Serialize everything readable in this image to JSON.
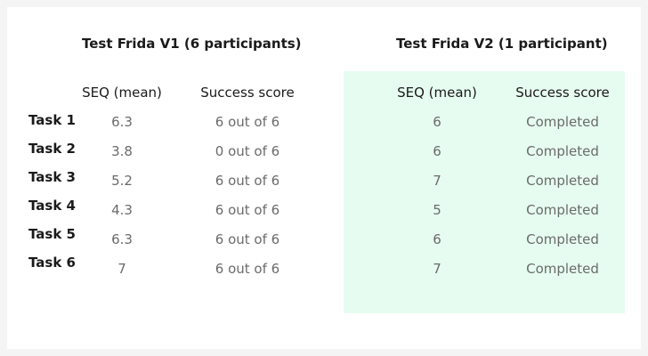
{
  "v1": {
    "title": "Test Frida V1 (6 participants)",
    "col_seq": "SEQ (mean)",
    "col_success": "Success score",
    "seq": [
      "6.3",
      "3.8",
      "5.2",
      "4.3",
      "6.3",
      "7"
    ],
    "success": [
      "6 out of 6",
      "0 out of 6",
      "6 out of 6",
      "6 out of 6",
      "6 out of 6",
      "6 out of 6"
    ]
  },
  "v2": {
    "title": "Test Frida V2 (1 participant)",
    "col_seq": "SEQ (mean)",
    "col_success": "Success score",
    "seq": [
      "6",
      "6",
      "7",
      "5",
      "6",
      "7"
    ],
    "success": [
      "Completed",
      "Completed",
      "Completed",
      "Completed",
      "Completed",
      "Completed"
    ]
  },
  "tasks": [
    "Task 1",
    "Task 2",
    "Task 3",
    "Task 4",
    "Task 5",
    "Task 6"
  ],
  "colors": {
    "highlight": "#e6fcf0",
    "text": "#1a1a1a",
    "muted": "#6b6b6b"
  }
}
